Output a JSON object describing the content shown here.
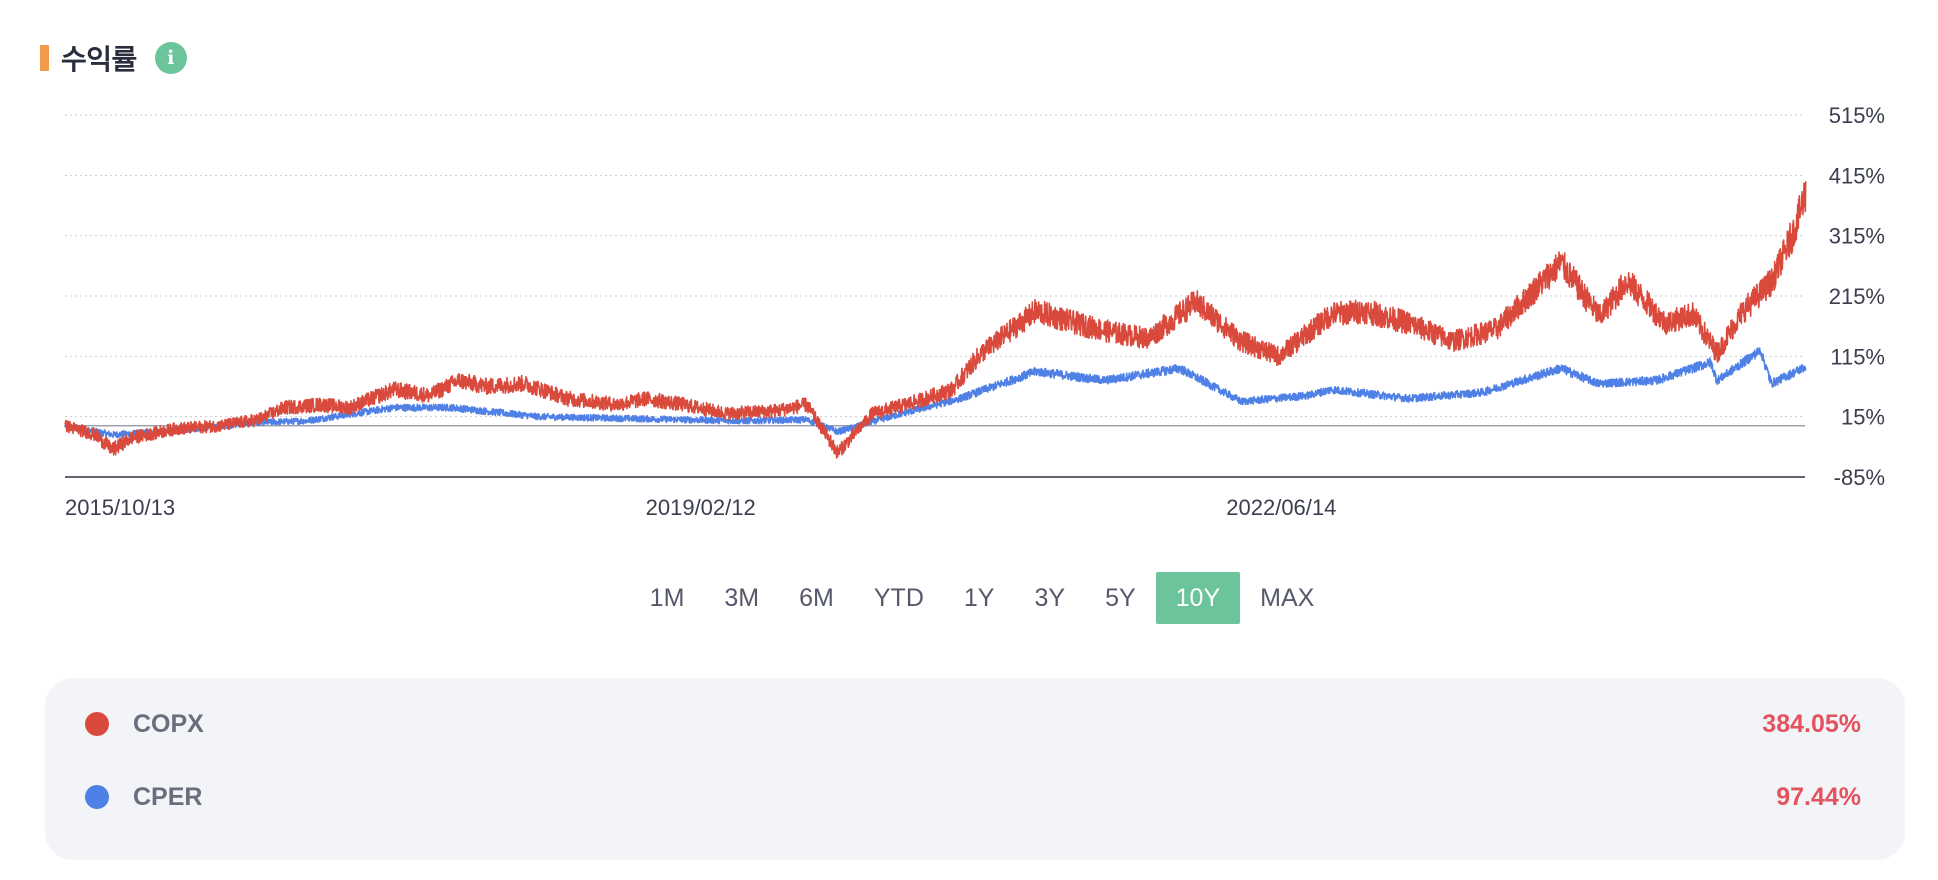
{
  "header": {
    "title": "수익률",
    "info_icon_glyph": "i"
  },
  "colors": {
    "accent_bar": "#f2994a",
    "info_icon": "#6cc49b",
    "active_range": "#6cc49b",
    "series_copx": "#d94a3d",
    "series_cper": "#4f80e6",
    "positive_value": "#e5525f"
  },
  "ranges": {
    "selected": "10Y",
    "options": [
      "1M",
      "3M",
      "6M",
      "YTD",
      "1Y",
      "3Y",
      "5Y",
      "10Y",
      "MAX"
    ]
  },
  "legend": [
    {
      "ticker": "COPX",
      "value": "384.05%",
      "color": "#d94a3d"
    },
    {
      "ticker": "CPER",
      "value": "97.44%",
      "color": "#4f80e6"
    }
  ],
  "chart_data": {
    "type": "line",
    "title": "",
    "xlabel": "",
    "ylabel": "",
    "x_tick_labels": [
      "2015/10/13",
      "2019/02/12",
      "2022/06/14"
    ],
    "y_tick_labels": [
      "515%",
      "415%",
      "315%",
      "215%",
      "115%",
      "15%",
      "-85%"
    ],
    "ylim": [
      -85,
      515
    ],
    "y_unit": "%",
    "x_range": [
      "2015/10/13",
      "2025/10/10"
    ],
    "baseline_value": 0,
    "grid": true,
    "legend": "below",
    "series": [
      {
        "name": "COPX",
        "color": "#d94a3d",
        "points": [
          [
            "2015/10/13",
            0
          ],
          [
            "2015/12/15",
            -15
          ],
          [
            "2016/01/20",
            -40
          ],
          [
            "2016/03/01",
            -20
          ],
          [
            "2016/06/01",
            -5
          ],
          [
            "2016/09/01",
            0
          ],
          [
            "2016/11/20",
            10
          ],
          [
            "2017/01/15",
            30
          ],
          [
            "2017/04/01",
            35
          ],
          [
            "2017/06/01",
            30
          ],
          [
            "2017/09/01",
            60
          ],
          [
            "2017/11/15",
            50
          ],
          [
            "2018/01/15",
            75
          ],
          [
            "2018/03/15",
            65
          ],
          [
            "2018/06/01",
            70
          ],
          [
            "2018/09/01",
            45
          ],
          [
            "2018/12/15",
            35
          ],
          [
            "2019/02/12",
            45
          ],
          [
            "2019/05/01",
            35
          ],
          [
            "2019/08/01",
            20
          ],
          [
            "2019/11/15",
            25
          ],
          [
            "2020/01/15",
            35
          ],
          [
            "2020/03/20",
            -45
          ],
          [
            "2020/06/01",
            20
          ],
          [
            "2020/09/01",
            40
          ],
          [
            "2020/11/15",
            60
          ],
          [
            "2021/01/15",
            120
          ],
          [
            "2021/05/10",
            190
          ],
          [
            "2021/08/01",
            170
          ],
          [
            "2021/10/15",
            155
          ],
          [
            "2022/01/01",
            145
          ],
          [
            "2022/04/10",
            205
          ],
          [
            "2022/07/15",
            140
          ],
          [
            "2022/10/01",
            115
          ],
          [
            "2023/01/20",
            185
          ],
          [
            "2023/04/01",
            190
          ],
          [
            "2023/07/01",
            170
          ],
          [
            "2023/10/01",
            140
          ],
          [
            "2024/01/01",
            160
          ],
          [
            "2024/05/15",
            270
          ],
          [
            "2024/08/05",
            180
          ],
          [
            "2024/10/01",
            240
          ],
          [
            "2024/12/20",
            170
          ],
          [
            "2025/02/15",
            185
          ],
          [
            "2025/04/08",
            120
          ],
          [
            "2025/06/01",
            190
          ],
          [
            "2025/08/01",
            240
          ],
          [
            "2025/09/15",
            320
          ],
          [
            "2025/10/10",
            384.05
          ]
        ]
      },
      {
        "name": "CPER",
        "color": "#4f80e6",
        "points": [
          [
            "2015/10/13",
            0
          ],
          [
            "2016/01/20",
            -15
          ],
          [
            "2016/06/01",
            -8
          ],
          [
            "2016/11/15",
            5
          ],
          [
            "2017/03/01",
            8
          ],
          [
            "2017/09/01",
            30
          ],
          [
            "2018/01/01",
            30
          ],
          [
            "2018/07/01",
            15
          ],
          [
            "2019/01/01",
            12
          ],
          [
            "2019/09/01",
            8
          ],
          [
            "2020/01/15",
            10
          ],
          [
            "2020/03/20",
            -10
          ],
          [
            "2020/08/01",
            20
          ],
          [
            "2020/12/01",
            45
          ],
          [
            "2021/05/10",
            90
          ],
          [
            "2021/10/01",
            75
          ],
          [
            "2022/03/07",
            95
          ],
          [
            "2022/07/15",
            40
          ],
          [
            "2022/12/01",
            50
          ],
          [
            "2023/01/20",
            60
          ],
          [
            "2023/07/01",
            45
          ],
          [
            "2023/12/01",
            55
          ],
          [
            "2024/05/15",
            95
          ],
          [
            "2024/08/01",
            70
          ],
          [
            "2024/12/01",
            75
          ],
          [
            "2025/03/25",
            105
          ],
          [
            "2025/04/08",
            75
          ],
          [
            "2025/07/08",
            125
          ],
          [
            "2025/07/31",
            70
          ],
          [
            "2025/10/10",
            97.44
          ]
        ]
      }
    ]
  }
}
